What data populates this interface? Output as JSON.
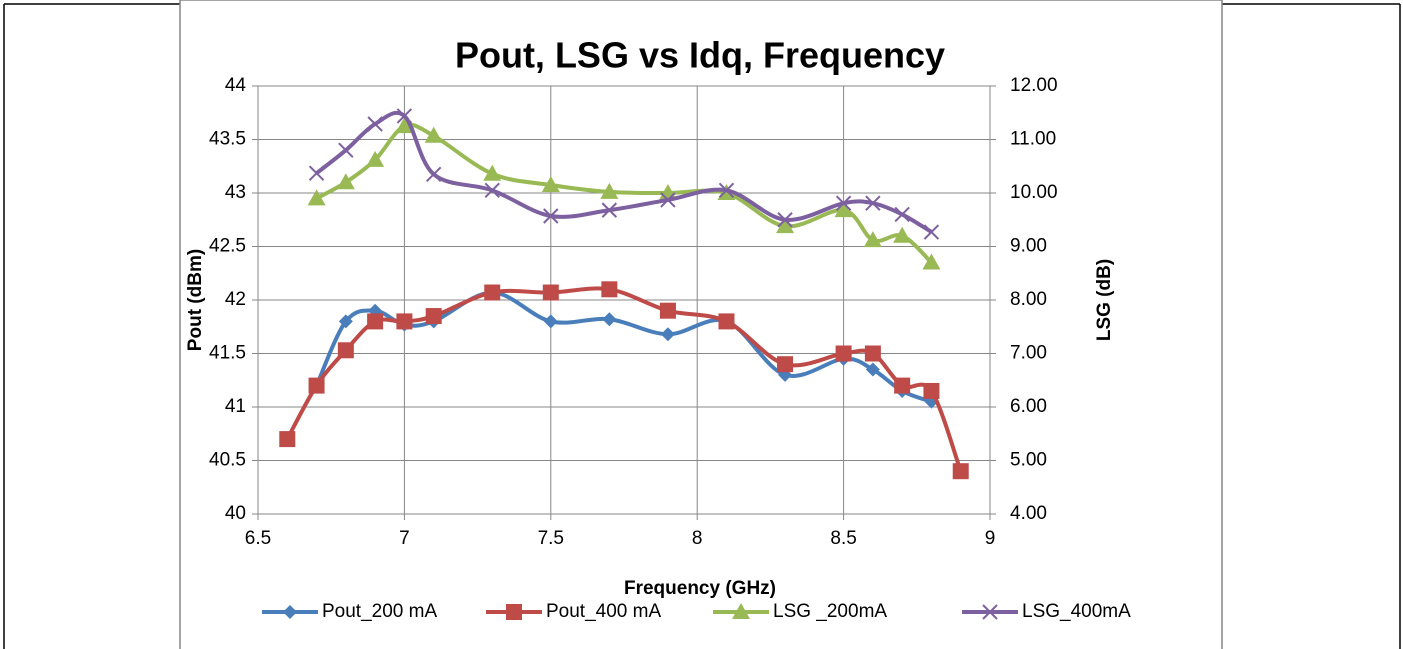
{
  "chart_data": {
    "type": "line",
    "title": "Pout, LSG vs Idq, Frequency",
    "x_label": "Frequency (GHz)",
    "y_label": "Pout (dBm)",
    "y2_label": "LSG (dB)",
    "xlim": [
      6.5,
      9
    ],
    "xticks": [
      6.5,
      7,
      7.5,
      8,
      8.5,
      9
    ],
    "ylim": [
      40,
      44
    ],
    "yticks": [
      40,
      40.5,
      41,
      41.5,
      42,
      42.5,
      43,
      43.5,
      44
    ],
    "y2lim": [
      4,
      12
    ],
    "y2ticks": [
      {
        "value": 4,
        "label": "4.00"
      },
      {
        "value": 5,
        "label": "5.00"
      },
      {
        "value": 6,
        "label": "6.00"
      },
      {
        "value": 7,
        "label": "7.00"
      },
      {
        "value": 8,
        "label": "8.00"
      },
      {
        "value": 9,
        "label": "9.00"
      },
      {
        "value": 10,
        "label": "10.00"
      },
      {
        "value": 11,
        "label": "11.00"
      },
      {
        "value": 12,
        "label": "12.00"
      }
    ],
    "grid": true,
    "legend": "bottom",
    "series": [
      {
        "name": "Pout_200 mA",
        "color": "#4a7ebb",
        "marker": "diamond",
        "x": [
          6.7,
          6.8,
          6.9,
          7.0,
          7.1,
          7.3,
          7.5,
          7.7,
          7.9,
          8.1,
          8.3,
          8.5,
          8.6,
          8.7,
          8.8
        ],
        "values": [
          41.2,
          41.8,
          41.9,
          41.77,
          41.8,
          42.07,
          41.8,
          41.82,
          41.68,
          41.8,
          41.3,
          41.45,
          41.35,
          41.15,
          41.05
        ]
      },
      {
        "name": "Pout_400 mA",
        "color": "#be4b48",
        "marker": "square",
        "x": [
          6.6,
          6.7,
          6.8,
          6.9,
          7.0,
          7.1,
          7.3,
          7.5,
          7.7,
          7.9,
          8.1,
          8.3,
          8.5,
          8.6,
          8.7,
          8.8,
          8.9
        ],
        "values": [
          40.7,
          41.2,
          41.53,
          41.8,
          41.8,
          41.85,
          42.07,
          42.07,
          42.1,
          41.9,
          41.8,
          41.4,
          41.5,
          41.5,
          41.2,
          41.15,
          40.4
        ]
      },
      {
        "name": "LSG _200mA",
        "color": "#98b954",
        "marker": "triangle",
        "axis": "y2",
        "x": [
          6.7,
          6.8,
          6.9,
          7.0,
          7.1,
          7.3,
          7.5,
          7.7,
          7.9,
          8.1,
          8.3,
          8.5,
          8.6,
          8.7,
          8.8
        ],
        "values": [
          9.9,
          10.2,
          10.62,
          11.25,
          11.07,
          10.36,
          10.15,
          10.02,
          10.0,
          10.0,
          9.38,
          9.68,
          9.12,
          9.2,
          8.7
        ]
      },
      {
        "name": "LSG_400mA",
        "color": "#7d60a0",
        "marker": "x",
        "axis": "y2",
        "x": [
          6.7,
          6.8,
          6.9,
          7.0,
          7.1,
          7.3,
          7.5,
          7.7,
          7.9,
          8.1,
          8.3,
          8.5,
          8.6,
          8.7,
          8.8
        ],
        "values": [
          10.37,
          10.8,
          11.29,
          11.44,
          10.35,
          10.05,
          9.57,
          9.68,
          9.87,
          10.05,
          9.5,
          9.81,
          9.81,
          9.6,
          9.27
        ]
      }
    ]
  }
}
